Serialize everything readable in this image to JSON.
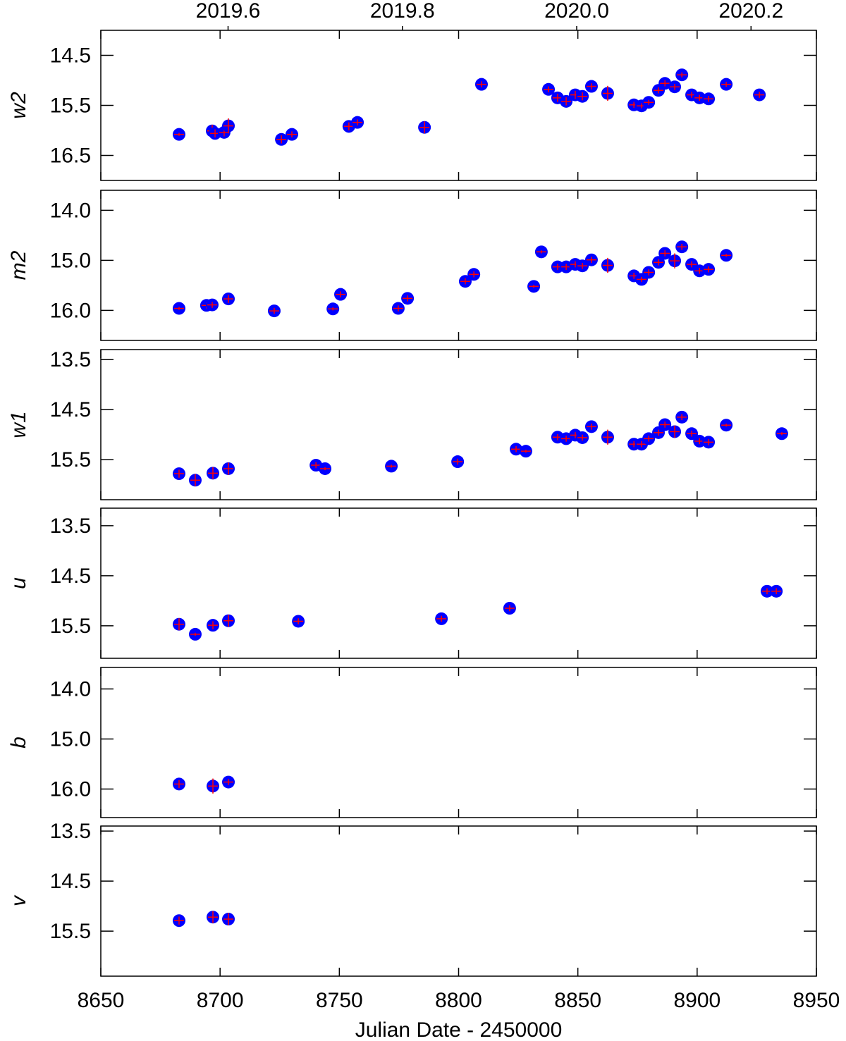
{
  "chart_data": [
    {
      "type": "scatter",
      "ylabel": "w2",
      "color": "#0000ff",
      "error_color": "#ff0000",
      "xlim": [
        8650,
        8950
      ],
      "x2lim": [
        2019.454,
        2020.275
      ],
      "x2ticks": [
        2019.6,
        2019.8,
        {
          "value": 2020.0,
          "label": "2020.0"
        },
        2020.2
      ],
      "ylim": [
        17.0,
        14.0
      ],
      "yticks": [
        14.5,
        15.5,
        16.5
      ],
      "x": [
        8682.8,
        8696.7,
        8697.9,
        8701.7,
        8703.5,
        8725.7,
        8730.1,
        8754.0,
        8757.6,
        8785.7,
        8809.6,
        8837.7,
        8841.5,
        8845.1,
        8848.9,
        8851.9,
        8855.7,
        8862.5,
        8873.5,
        8876.7,
        8879.7,
        8883.8,
        8886.5,
        8890.6,
        8893.6,
        8897.7,
        8901.0,
        8904.8,
        8912.2,
        8926.1
      ],
      "values": [
        16.08,
        16.01,
        16.06,
        16.04,
        15.91,
        16.18,
        16.08,
        15.92,
        15.84,
        15.94,
        15.08,
        15.18,
        15.35,
        15.42,
        15.29,
        15.32,
        15.12,
        15.26,
        15.49,
        15.51,
        15.44,
        15.2,
        15.06,
        15.13,
        14.89,
        15.29,
        15.35,
        15.37,
        15.08,
        15.29
      ],
      "errors": [
        0.03,
        0.12,
        0.08,
        0.08,
        0.15,
        0.08,
        0.06,
        0.08,
        0.06,
        0.12,
        0.06,
        0.06,
        0.08,
        0.08,
        0.08,
        0.08,
        0.06,
        0.15,
        0.06,
        0.05,
        0.05,
        0.06,
        0.06,
        0.06,
        0.05,
        0.06,
        0.06,
        0.06,
        0.05,
        0.06
      ]
    },
    {
      "type": "scatter",
      "ylabel": "m2",
      "color": "#0000ff",
      "error_color": "#ff0000",
      "xlim": [
        8650,
        8950
      ],
      "ylim": [
        16.6,
        13.6
      ],
      "yticks": [
        {
          "value": 14.0,
          "label": "14.0"
        },
        {
          "value": 15.0,
          "label": "15.0"
        },
        {
          "value": 16.0,
          "label": "16.0"
        }
      ],
      "x": [
        8682.8,
        8694.3,
        8696.7,
        8703.5,
        8722.7,
        8747.3,
        8750.5,
        8774.7,
        8778.6,
        8802.8,
        8806.4,
        8831.5,
        8834.7,
        8841.5,
        8845.1,
        8848.9,
        8851.9,
        8855.7,
        8862.5,
        8873.5,
        8876.7,
        8879.7,
        8883.8,
        8886.5,
        8890.6,
        8893.6,
        8897.7,
        8901.0,
        8904.8,
        8912.2
      ],
      "values": [
        15.96,
        15.9,
        15.89,
        15.77,
        16.01,
        15.97,
        15.68,
        15.96,
        15.76,
        15.42,
        15.28,
        15.52,
        14.83,
        15.13,
        15.13,
        15.08,
        15.11,
        14.99,
        15.1,
        15.31,
        15.38,
        15.24,
        15.04,
        14.86,
        15.01,
        14.73,
        15.08,
        15.21,
        15.18,
        14.9
      ],
      "errors": [
        0.03,
        0.06,
        0.06,
        0.08,
        0.06,
        0.03,
        0.06,
        0.06,
        0.06,
        0.06,
        0.06,
        0.03,
        0.03,
        0.06,
        0.06,
        0.06,
        0.06,
        0.06,
        0.15,
        0.06,
        0.05,
        0.06,
        0.06,
        0.06,
        0.15,
        0.06,
        0.06,
        0.06,
        0.06,
        0.03
      ]
    },
    {
      "type": "scatter",
      "ylabel": "w1",
      "color": "#0000ff",
      "error_color": "#ff0000",
      "xlim": [
        8650,
        8950
      ],
      "ylim": [
        16.3,
        13.3
      ],
      "yticks": [
        13.5,
        14.5,
        15.5
      ],
      "x": [
        8682.8,
        8689.6,
        8697.0,
        8703.5,
        8740.2,
        8744.0,
        8771.8,
        8799.6,
        8824.1,
        8828.2,
        8841.5,
        8845.1,
        8848.9,
        8851.9,
        8855.7,
        8862.5,
        8873.5,
        8876.7,
        8879.7,
        8883.8,
        8886.5,
        8890.6,
        8893.6,
        8897.7,
        8901.0,
        8904.8,
        8912.2,
        8935.5
      ],
      "values": [
        15.78,
        15.91,
        15.77,
        15.68,
        15.61,
        15.68,
        15.63,
        15.54,
        15.29,
        15.33,
        15.05,
        15.08,
        15.01,
        15.06,
        14.84,
        15.05,
        15.19,
        15.19,
        15.08,
        14.96,
        14.8,
        14.94,
        14.65,
        14.98,
        15.13,
        15.15,
        14.81,
        14.98
      ],
      "errors": [
        0.08,
        0.12,
        0.12,
        0.12,
        0.06,
        0.03,
        0.03,
        0.06,
        0.06,
        0.03,
        0.06,
        0.06,
        0.06,
        0.06,
        0.06,
        0.15,
        0.06,
        0.06,
        0.06,
        0.06,
        0.06,
        0.12,
        0.06,
        0.06,
        0.06,
        0.06,
        0.03,
        0.03
      ]
    },
    {
      "type": "scatter",
      "ylabel": "u",
      "color": "#0000ff",
      "error_color": "#ff0000",
      "xlim": [
        8650,
        8950
      ],
      "ylim": [
        16.15,
        13.15
      ],
      "yticks": [
        13.5,
        14.5,
        15.5
      ],
      "x": [
        8682.8,
        8689.6,
        8697.0,
        8703.5,
        8732.8,
        8792.8,
        8821.4,
        8929.3,
        8933.2
      ],
      "values": [
        15.47,
        15.67,
        15.49,
        15.4,
        15.41,
        15.36,
        15.15,
        14.81,
        14.81
      ],
      "errors": [
        0.12,
        0.03,
        0.08,
        0.12,
        0.06,
        0.06,
        0.06,
        0.06,
        0.06
      ]
    },
    {
      "type": "scatter",
      "ylabel": "b",
      "color": "#0000ff",
      "error_color": "#ff0000",
      "xlim": [
        8650,
        8950
      ],
      "ylim": [
        16.57,
        13.57
      ],
      "yticks": [
        {
          "value": 14.0,
          "label": "14.0"
        },
        {
          "value": 15.0,
          "label": "15.0"
        },
        {
          "value": 16.0,
          "label": "16.0"
        }
      ],
      "x": [
        8682.8,
        8697.0,
        8703.5
      ],
      "values": [
        15.9,
        15.94,
        15.86
      ],
      "errors": [
        0.08,
        0.15,
        0.06
      ]
    },
    {
      "type": "scatter",
      "ylabel": "v",
      "color": "#0000ff",
      "error_color": "#ff0000",
      "xlim": [
        8650,
        8950
      ],
      "ylim": [
        16.4,
        13.4
      ],
      "yticks": [
        13.5,
        14.5,
        15.5
      ],
      "xticks": [
        8650,
        8700,
        8750,
        8800,
        8850,
        8900,
        8950
      ],
      "xlabel": "Julian Date - 2450000",
      "x": [
        8682.8,
        8697.0,
        8703.5
      ],
      "values": [
        15.29,
        15.22,
        15.26
      ],
      "errors": [
        0.08,
        0.12,
        0.12
      ]
    }
  ]
}
